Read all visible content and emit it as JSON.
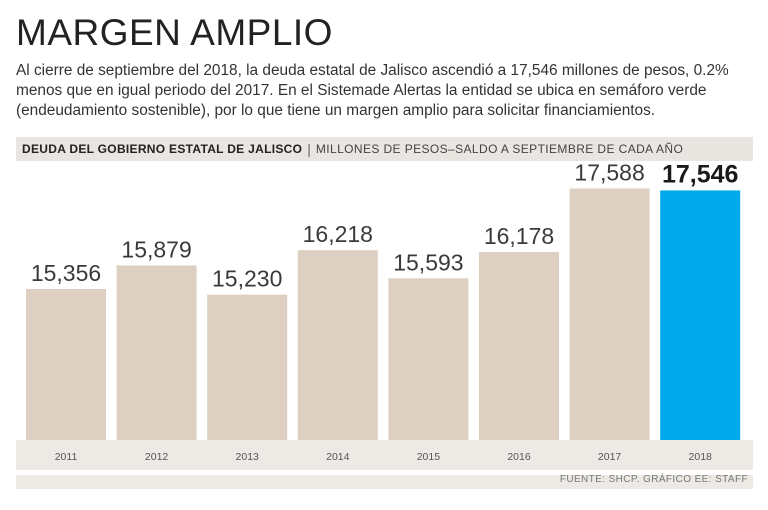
{
  "headline": "MARGEN AMPLIO",
  "intro": "Al cierre de septiembre del 2018, la deuda estatal de Jalisco ascendió a 17,546 millones de pesos, 0.2% menos que en igual periodo del 2017. En el Sistemade Alertas la entidad se ubica en semáforo verde (endeudamiento sostenible), por lo que tiene un margen amplio para solicitar financiamientos.",
  "source": "FUENTE: SHCP. GRÁFICO EE: STAFF",
  "colors": {
    "bar": "#ddd0c2",
    "highlight": "#00a9e9"
  },
  "chart_data": {
    "type": "bar",
    "title": "DEUDA DEL GOBIERNO ESTATAL DE JALISCO",
    "subtitle": "MILLONES DE PESOS–SALDO A SEPTIEMBRE DE CADA AÑO",
    "categories": [
      "2011",
      "2012",
      "2013",
      "2014",
      "2015",
      "2016",
      "2017",
      "2018"
    ],
    "values": [
      15356,
      15879,
      15230,
      16218,
      15593,
      16178,
      17588,
      17546
    ],
    "value_labels": [
      "15,356",
      "15,879",
      "15,230",
      "16,218",
      "15,593",
      "16,178",
      "17,588",
      "17,546"
    ],
    "highlight_index": 7,
    "xlabel": "",
    "ylabel": "",
    "ylim": [
      12000,
      18000
    ]
  }
}
